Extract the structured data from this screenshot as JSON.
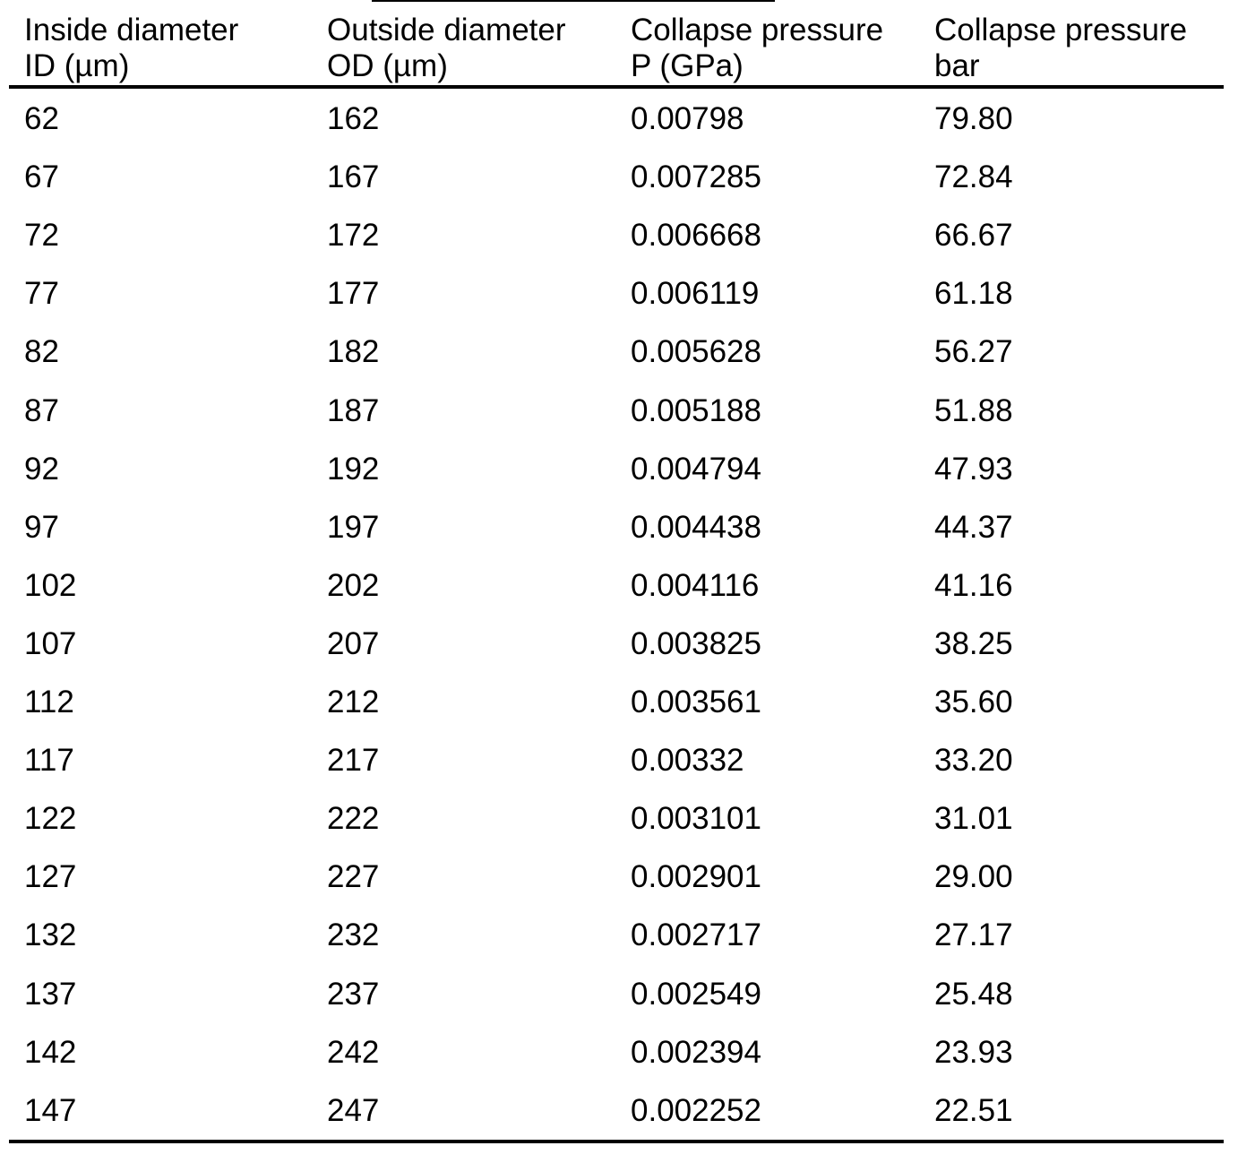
{
  "table": {
    "header": [
      [
        "Inside diameter",
        "ID (µm)"
      ],
      [
        "Outside diameter",
        "OD (µm)"
      ],
      [
        "Collapse pressure",
        "P (GPa)"
      ],
      [
        "Collapse pressure",
        "bar"
      ]
    ],
    "rows": [
      [
        "62",
        "162",
        "0.00798",
        "79.80"
      ],
      [
        "67",
        "167",
        "0.007285",
        "72.84"
      ],
      [
        "72",
        "172",
        "0.006668",
        "66.67"
      ],
      [
        "77",
        "177",
        "0.006119",
        "61.18"
      ],
      [
        "82",
        "182",
        "0.005628",
        "56.27"
      ],
      [
        "87",
        "187",
        "0.005188",
        "51.88"
      ],
      [
        "92",
        "192",
        "0.004794",
        "47.93"
      ],
      [
        "97",
        "197",
        "0.004438",
        "44.37"
      ],
      [
        "102",
        "202",
        "0.004116",
        "41.16"
      ],
      [
        "107",
        "207",
        "0.003825",
        "38.25"
      ],
      [
        "112",
        "212",
        "0.003561",
        "35.60"
      ],
      [
        "117",
        "217",
        "0.00332",
        "33.20"
      ],
      [
        "122",
        "222",
        "0.003101",
        "31.01"
      ],
      [
        "127",
        "227",
        "0.002901",
        "29.00"
      ],
      [
        "132",
        "232",
        "0.002717",
        "27.17"
      ],
      [
        "137",
        "237",
        "0.002549",
        "25.48"
      ],
      [
        "142",
        "242",
        "0.002394",
        "23.93"
      ],
      [
        "147",
        "247",
        "0.002252",
        "22.51"
      ]
    ]
  }
}
